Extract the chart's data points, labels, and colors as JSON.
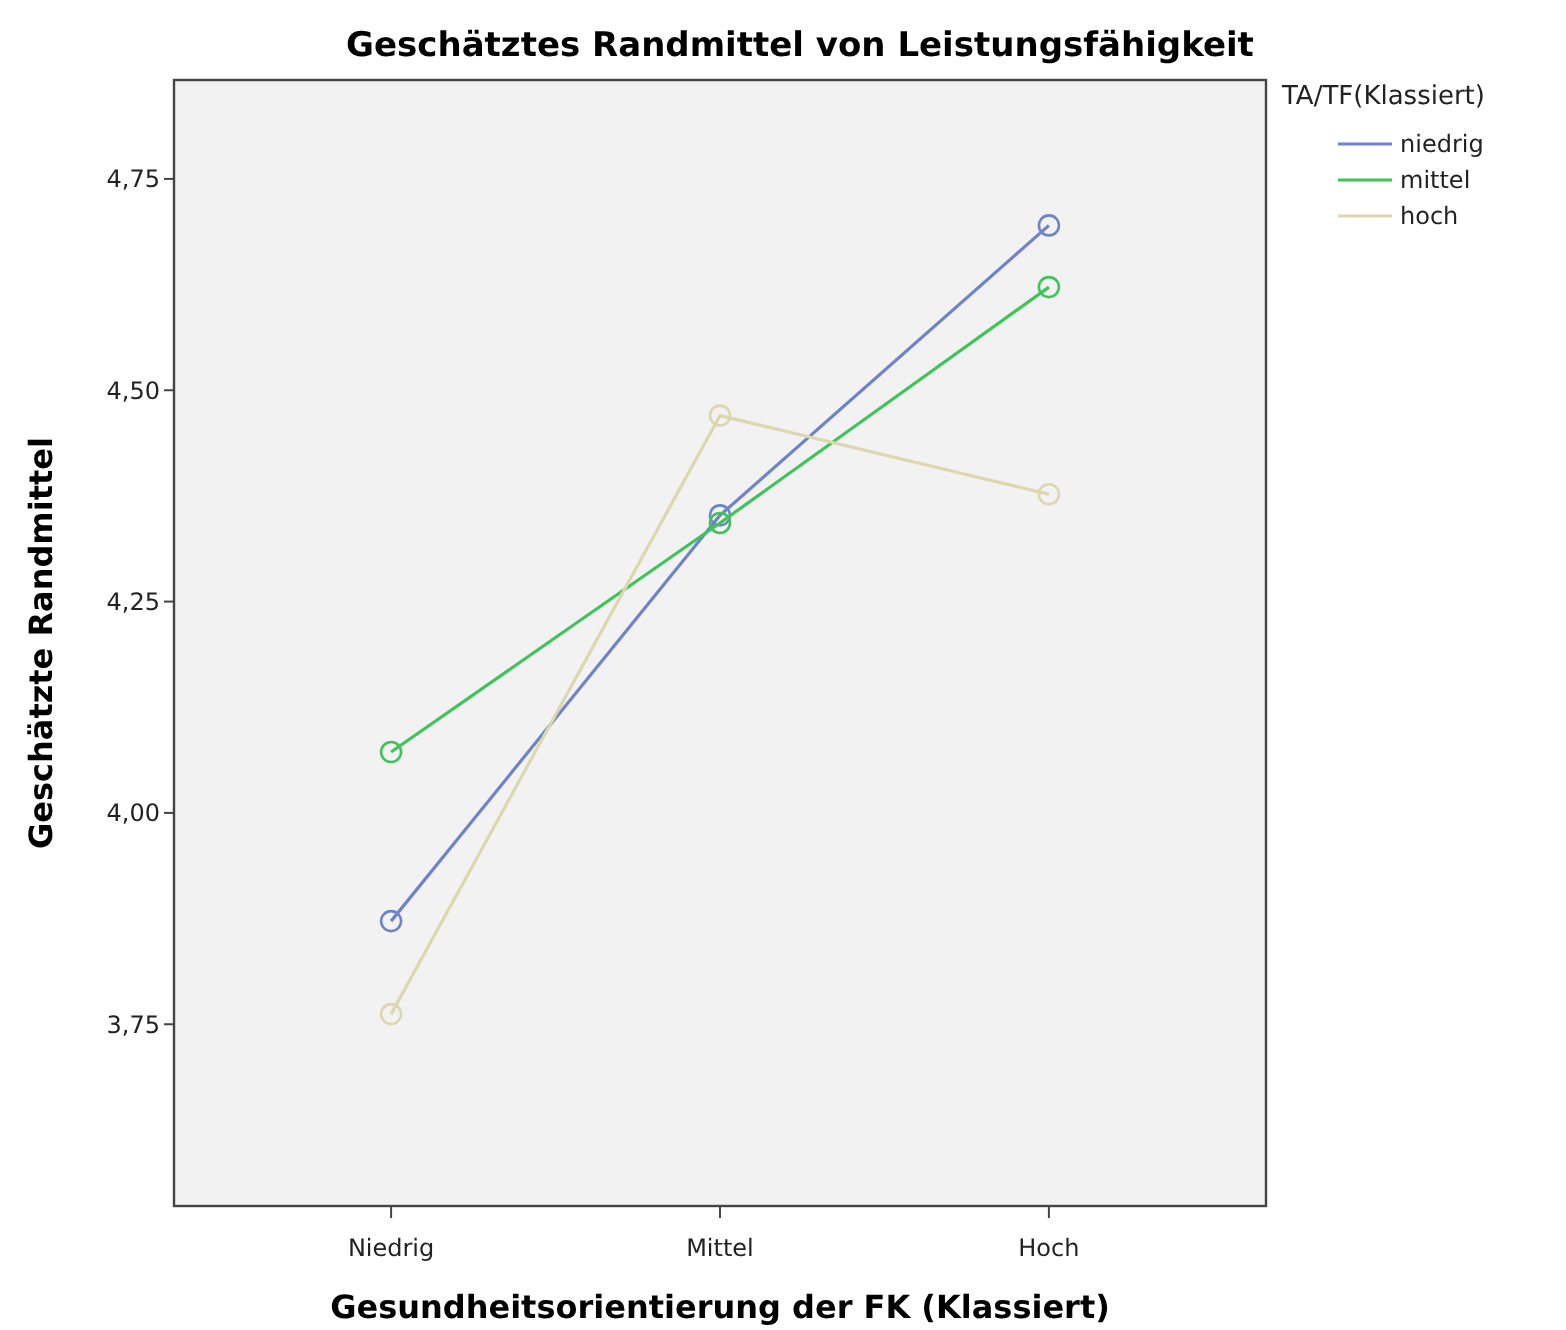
{
  "chart_data": {
    "type": "line",
    "title": "Geschätztes Randmittel von Leistungsfähigkeit",
    "xlabel": "Gesundheitsorientierung der FK (Klassiert)",
    "ylabel": "Geschätzte Randmittel",
    "legend_title": "TA/TF(Klassiert)",
    "categories": [
      "Niedrig",
      "Mittel",
      "Hoch"
    ],
    "series": [
      {
        "name": "niedrig",
        "color": "#6f84c8",
        "values": [
          3.872,
          4.352,
          4.695
        ]
      },
      {
        "name": "mittel",
        "color": "#40c35a",
        "values": [
          4.072,
          4.343,
          4.622
        ]
      },
      {
        "name": "hoch",
        "color": "#dcd7ad",
        "values": [
          3.762,
          4.47,
          4.377
        ]
      }
    ],
    "ylim": [
      3.535,
      4.867
    ],
    "yticks": [
      {
        "value": 3.75,
        "label": "3,75"
      },
      {
        "value": 4.0,
        "label": "4,00"
      },
      {
        "value": 4.25,
        "label": "4,25"
      },
      {
        "value": 4.5,
        "label": "4,50"
      },
      {
        "value": 4.75,
        "label": "4,75"
      }
    ],
    "grid": false,
    "legend": "top right",
    "marker": "circle",
    "line_style": "solid"
  }
}
